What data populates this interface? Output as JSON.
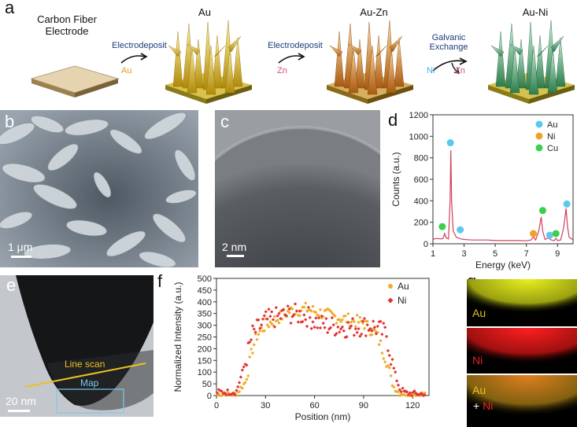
{
  "panel_a": {
    "label": "a",
    "stages": [
      {
        "title_line1": "Carbon Fiber",
        "title_line2": "Electrode"
      },
      {
        "title": "Au"
      },
      {
        "title": "Au-Zn"
      },
      {
        "title": "Au-Ni"
      }
    ],
    "steps": [
      {
        "label": "Electrodeposit",
        "element": "Au",
        "element_color": "#e0a21a"
      },
      {
        "label": "Electrodeposit",
        "element": "Zn",
        "element_color": "#d44b86"
      },
      {
        "label_line1": "Galvanic",
        "label_line2": "Exchange",
        "element_in": "Ni",
        "element_in_color": "#3cb4e6",
        "element_out": "Zn",
        "element_out_color": "#d44b86"
      }
    ]
  },
  "panel_b": {
    "label": "b",
    "scale_bar": "1 μm"
  },
  "panel_c": {
    "label": "c",
    "scale_bar": "2 nm"
  },
  "panel_d": {
    "label": "d"
  },
  "panel_e": {
    "label": "e",
    "line_scan": "Line scan",
    "map": "Map",
    "scale_bar": "20 nm"
  },
  "panel_f": {
    "label": "f"
  },
  "panel_g": {
    "label": "g",
    "au": "Au",
    "ni": "Ni",
    "merged_au": "Au",
    "merged_plus": "+",
    "merged_ni": "Ni"
  },
  "chart_data": [
    {
      "panel": "d",
      "type": "line",
      "title": "",
      "xlabel": "Energy (keV)",
      "ylabel": "Counts (a.u.)",
      "xlim": [
        1,
        10
      ],
      "ylim": [
        0,
        1200
      ],
      "xticks": [
        1,
        3,
        5,
        7,
        9
      ],
      "yticks": [
        0,
        200,
        400,
        600,
        800,
        1000,
        1200
      ],
      "series": [
        {
          "name": "EDS spectrum",
          "color": "#d0405a",
          "x": [
            1.0,
            1.2,
            1.5,
            1.65,
            1.75,
            1.85,
            2.0,
            2.1,
            2.15,
            2.2,
            2.3,
            2.5,
            2.8,
            3.0,
            3.5,
            4.0,
            4.5,
            5.0,
            5.5,
            6.0,
            6.5,
            7.0,
            7.3,
            7.45,
            7.6,
            7.8,
            7.95,
            8.05,
            8.2,
            8.4,
            8.6,
            8.8,
            8.9,
            9.0,
            9.2,
            9.4,
            9.55,
            9.65,
            9.75,
            9.9,
            10.0
          ],
          "y": [
            40,
            50,
            45,
            50,
            95,
            55,
            45,
            400,
            870,
            400,
            120,
            60,
            45,
            40,
            35,
            35,
            35,
            30,
            30,
            30,
            30,
            28,
            35,
            65,
            35,
            120,
            250,
            120,
            40,
            55,
            35,
            30,
            50,
            30,
            35,
            150,
            330,
            150,
            60,
            45,
            40
          ]
        }
      ],
      "legend": [
        {
          "label": "Au",
          "color": "#5cc8ee"
        },
        {
          "label": "Ni",
          "color": "#f0a227"
        },
        {
          "label": "Cu",
          "color": "#3ccf4e"
        }
      ],
      "legend_position": "top-right",
      "markers": [
        {
          "element": "Au",
          "x": 2.12,
          "y": 940
        },
        {
          "element": "Au",
          "x": 2.75,
          "y": 130
        },
        {
          "element": "Au",
          "x": 8.5,
          "y": 80
        },
        {
          "element": "Au",
          "x": 9.6,
          "y": 370
        },
        {
          "element": "Ni",
          "x": 7.45,
          "y": 95
        },
        {
          "element": "Cu",
          "x": 1.6,
          "y": 160
        },
        {
          "element": "Cu",
          "x": 8.05,
          "y": 310
        },
        {
          "element": "Cu",
          "x": 8.9,
          "y": 95
        }
      ]
    },
    {
      "panel": "f",
      "type": "scatter",
      "title": "",
      "xlabel": "Position (nm)",
      "ylabel": "Normalized Intensity (a.u.)",
      "xlim": [
        0,
        130
      ],
      "ylim": [
        0,
        500
      ],
      "xticks": [
        0,
        30,
        60,
        90,
        120
      ],
      "yticks": [
        0,
        50,
        100,
        150,
        200,
        250,
        300,
        350,
        400,
        450,
        500
      ],
      "legend_position": "top-right",
      "series": [
        {
          "name": "Au",
          "color": "#f0ad2a",
          "profile": [
            [
              0,
              5
            ],
            [
              12,
              5
            ],
            [
              18,
              60
            ],
            [
              22,
              200
            ],
            [
              25,
              260
            ],
            [
              30,
              300
            ],
            [
              45,
              360
            ],
            [
              55,
              370
            ],
            [
              70,
              340
            ],
            [
              90,
              310
            ],
            [
              98,
              260
            ],
            [
              104,
              150
            ],
            [
              108,
              40
            ],
            [
              112,
              10
            ],
            [
              128,
              5
            ]
          ]
        },
        {
          "name": "Ni",
          "color": "#e23232",
          "profile": [
            [
              0,
              15
            ],
            [
              12,
              15
            ],
            [
              15,
              80
            ],
            [
              18,
              150
            ],
            [
              22,
              260
            ],
            [
              30,
              320
            ],
            [
              45,
              350
            ],
            [
              55,
              340
            ],
            [
              65,
              300
            ],
            [
              80,
              290
            ],
            [
              95,
              300
            ],
            [
              104,
              260
            ],
            [
              108,
              120
            ],
            [
              112,
              30
            ],
            [
              116,
              10
            ],
            [
              128,
              5
            ]
          ]
        }
      ]
    }
  ]
}
